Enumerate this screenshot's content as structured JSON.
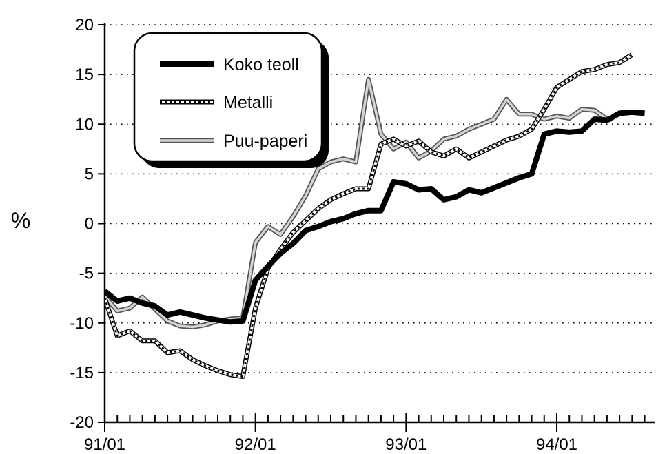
{
  "chart_data": {
    "type": "line",
    "title": "",
    "xlabel": "",
    "ylabel": "%",
    "ylim": [
      -20,
      20
    ],
    "yticks": [
      20,
      15,
      10,
      5,
      0,
      -5,
      -10,
      -15,
      -20
    ],
    "ytick_labels": [
      "20",
      "15",
      "10",
      "5",
      "0",
      "-5",
      "-10",
      "-15",
      "-20"
    ],
    "x_major_labels": [
      "91/01",
      "92/01",
      "93/01",
      "94/01"
    ],
    "x_major_positions": [
      0,
      12,
      24,
      36
    ],
    "xlim": [
      0,
      43
    ],
    "grid": "horizontal dotted",
    "legend_placement": "top-left",
    "series": [
      {
        "name": "Koko teoll",
        "style": "thick-black",
        "values": [
          -6.8,
          -7.8,
          -7.5,
          -8.0,
          -8.3,
          -9.2,
          -8.9,
          -9.2,
          -9.5,
          -9.7,
          -9.9,
          -9.8,
          -5.7,
          -4.3,
          -3.0,
          -2.0,
          -0.7,
          -0.3,
          0.2,
          0.5,
          1.0,
          1.3,
          1.3,
          4.2,
          4.0,
          3.4,
          3.5,
          2.4,
          2.7,
          3.4,
          3.1,
          3.6,
          4.1,
          4.6,
          5.0,
          9.0,
          9.3,
          9.2,
          9.3,
          10.5,
          10.4,
          11.1,
          11.2,
          11.1
        ]
      },
      {
        "name": "Metalli",
        "style": "hatched",
        "values": [
          -7.5,
          -11.3,
          -10.8,
          -11.8,
          -11.8,
          -13.0,
          -12.8,
          -13.7,
          -14.3,
          -14.8,
          -15.2,
          -15.4,
          -8.5,
          -4.5,
          -2.6,
          -0.9,
          0.3,
          1.5,
          2.4,
          3.0,
          3.5,
          3.5,
          8.0,
          8.5,
          7.8,
          8.3,
          7.2,
          6.8,
          7.5,
          6.6,
          7.2,
          7.8,
          8.4,
          8.8,
          9.5,
          11.5,
          13.7,
          14.5,
          15.3,
          15.5,
          16.0,
          16.2,
          17.0
        ]
      },
      {
        "name": "Puu-paperi",
        "style": "hollow-grey",
        "values": [
          -7.3,
          -8.8,
          -8.5,
          -7.4,
          -8.6,
          -9.8,
          -10.3,
          -10.4,
          -10.2,
          -9.8,
          -9.6,
          -9.5,
          -1.9,
          -0.3,
          -1.1,
          0.7,
          2.8,
          5.5,
          6.2,
          6.5,
          6.2,
          14.5,
          9.0,
          7.5,
          8.2,
          6.6,
          7.3,
          8.5,
          8.8,
          9.5,
          10.0,
          10.5,
          12.5,
          11.0,
          11.0,
          10.5,
          10.8,
          10.6,
          11.5,
          11.4,
          10.5
        ]
      }
    ]
  }
}
